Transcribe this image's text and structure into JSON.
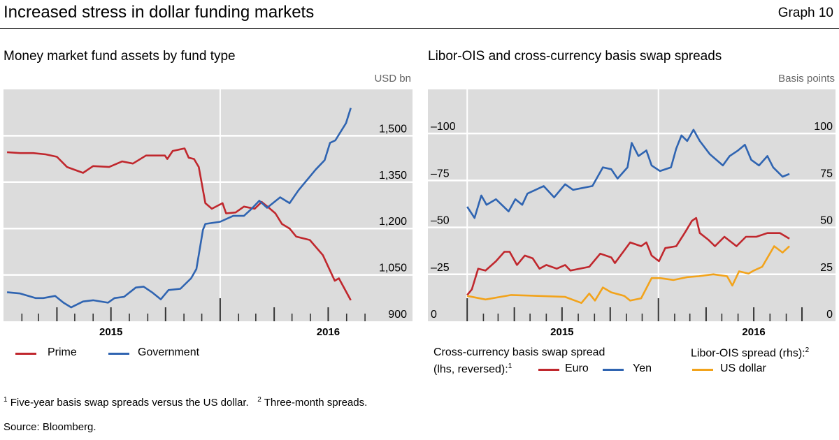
{
  "header": {
    "title": "Increased stress in dollar funding markets",
    "graph_label": "Graph 10"
  },
  "colors": {
    "prime": "#c0272d",
    "government": "#2f64b1",
    "euro": "#c0272d",
    "yen": "#2f64b1",
    "us_dollar": "#f2a31b",
    "plot_background": "#dcdcdc",
    "gridline": "#ffffff"
  },
  "chart_data": [
    {
      "type": "line",
      "title": "Money market fund assets by fund type",
      "y_unit": "USD bn",
      "y_axis_side": "right",
      "ylim": [
        900,
        1650
      ],
      "xlim": [
        "2015-01-01",
        "2016-11-20"
      ],
      "grid": true,
      "y_ticks": [
        {
          "value": 900,
          "label": "900"
        },
        {
          "value": 1050,
          "label": "1,050"
        },
        {
          "value": 1200,
          "label": "1,200"
        },
        {
          "value": 1350,
          "label": "1,350"
        },
        {
          "value": 1500,
          "label": "1,500"
        }
      ],
      "x_tick_labels": [
        {
          "date": "2015-07-01",
          "label": "2015"
        },
        {
          "date": "2016-07-01",
          "label": "2016"
        }
      ],
      "legend_position": "bottom",
      "series": [
        {
          "name": "Prime",
          "color": "#c0272d",
          "points": [
            [
              "2015-01-07",
              1447
            ],
            [
              "2015-01-29",
              1444
            ],
            [
              "2015-02-20",
              1444
            ],
            [
              "2015-03-13",
              1440
            ],
            [
              "2015-04-01",
              1432
            ],
            [
              "2015-04-18",
              1399
            ],
            [
              "2015-05-15",
              1380
            ],
            [
              "2015-06-01",
              1402
            ],
            [
              "2015-06-28",
              1399
            ],
            [
              "2015-07-20",
              1417
            ],
            [
              "2015-08-07",
              1410
            ],
            [
              "2015-08-29",
              1436
            ],
            [
              "2015-09-30",
              1436
            ],
            [
              "2015-10-04",
              1425
            ],
            [
              "2015-10-13",
              1451
            ],
            [
              "2015-11-02",
              1459
            ],
            [
              "2015-11-09",
              1429
            ],
            [
              "2015-11-18",
              1425
            ],
            [
              "2015-11-26",
              1399
            ],
            [
              "2015-12-07",
              1282
            ],
            [
              "2015-12-18",
              1264
            ],
            [
              "2016-01-05",
              1282
            ],
            [
              "2016-01-11",
              1249
            ],
            [
              "2016-01-27",
              1252
            ],
            [
              "2016-02-10",
              1271
            ],
            [
              "2016-02-28",
              1264
            ],
            [
              "2016-03-11",
              1286
            ],
            [
              "2016-03-25",
              1264
            ],
            [
              "2016-04-03",
              1249
            ],
            [
              "2016-04-14",
              1215
            ],
            [
              "2016-04-27",
              1200
            ],
            [
              "2016-05-08",
              1174
            ],
            [
              "2016-05-31",
              1163
            ],
            [
              "2016-06-22",
              1114
            ],
            [
              "2016-07-12",
              1031
            ],
            [
              "2016-07-19",
              1039
            ],
            [
              "2016-08-08",
              968
            ]
          ]
        },
        {
          "name": "Government",
          "color": "#2f64b1",
          "points": [
            [
              "2015-01-07",
              994
            ],
            [
              "2015-01-29",
              990
            ],
            [
              "2015-02-24",
              975
            ],
            [
              "2015-03-09",
              975
            ],
            [
              "2015-03-29",
              982
            ],
            [
              "2015-04-12",
              960
            ],
            [
              "2015-04-25",
              945
            ],
            [
              "2015-05-15",
              964
            ],
            [
              "2015-06-01",
              968
            ],
            [
              "2015-06-26",
              960
            ],
            [
              "2015-07-07",
              975
            ],
            [
              "2015-07-23",
              979
            ],
            [
              "2015-08-12",
              1009
            ],
            [
              "2015-08-25",
              1012
            ],
            [
              "2015-09-08",
              994
            ],
            [
              "2015-09-23",
              971
            ],
            [
              "2015-10-06",
              1001
            ],
            [
              "2015-10-26",
              1005
            ],
            [
              "2015-11-13",
              1039
            ],
            [
              "2015-11-22",
              1069
            ],
            [
              "2015-12-03",
              1196
            ],
            [
              "2015-12-07",
              1215
            ],
            [
              "2016-01-01",
              1222
            ],
            [
              "2016-01-23",
              1241
            ],
            [
              "2016-02-10",
              1241
            ],
            [
              "2016-02-23",
              1264
            ],
            [
              "2016-03-07",
              1290
            ],
            [
              "2016-03-20",
              1267
            ],
            [
              "2016-04-11",
              1301
            ],
            [
              "2016-04-27",
              1282
            ],
            [
              "2016-05-12",
              1324
            ],
            [
              "2016-06-10",
              1391
            ],
            [
              "2016-06-25",
              1421
            ],
            [
              "2016-07-04",
              1477
            ],
            [
              "2016-07-13",
              1485
            ],
            [
              "2016-07-31",
              1541
            ],
            [
              "2016-08-08",
              1590
            ]
          ]
        }
      ]
    },
    {
      "type": "line",
      "title": "Libor-OIS and cross-currency basis swap spreads",
      "y_unit": "Basis points",
      "xlim": [
        "2014-10-18",
        "2016-12-04"
      ],
      "ylim_left": [
        0,
        -123.5
      ],
      "ylim_left_reversed": true,
      "ylim_right": [
        0,
        123.5
      ],
      "grid": true,
      "y_ticks_left": [
        {
          "value": 0,
          "label": "0"
        },
        {
          "value": -25,
          "label": "–25"
        },
        {
          "value": -50,
          "label": "–50"
        },
        {
          "value": -75,
          "label": "–75"
        },
        {
          "value": -100,
          "label": "–100"
        }
      ],
      "y_ticks_right": [
        {
          "value": 0,
          "label": "0"
        },
        {
          "value": 25,
          "label": "25"
        },
        {
          "value": 50,
          "label": "50"
        },
        {
          "value": 75,
          "label": "75"
        },
        {
          "value": 100,
          "label": "100"
        }
      ],
      "x_tick_labels": [
        {
          "date": "2015-07-01",
          "label": "2015"
        },
        {
          "date": "2016-07-01",
          "label": "2016"
        }
      ],
      "legend_position": "bottom",
      "legend": {
        "group1_line1": "Cross-currency basis swap spread",
        "group1_line2": "(lhs, reversed):",
        "group1_footnote": "1",
        "group2_line1": "Libor-OIS spread (rhs):",
        "group2_footnote": "2"
      },
      "series": [
        {
          "name": "Euro",
          "axis": "left",
          "color": "#c0272d",
          "points": [
            [
              "2015-01-01",
              -14
            ],
            [
              "2015-01-10",
              -17
            ],
            [
              "2015-01-22",
              -28
            ],
            [
              "2015-02-05",
              -27
            ],
            [
              "2015-02-25",
              -32
            ],
            [
              "2015-03-13",
              -37
            ],
            [
              "2015-03-23",
              -37
            ],
            [
              "2015-04-06",
              -30
            ],
            [
              "2015-04-21",
              -35
            ],
            [
              "2015-05-06",
              -33.5
            ],
            [
              "2015-05-19",
              -28
            ],
            [
              "2015-06-01",
              -30
            ],
            [
              "2015-06-21",
              -28
            ],
            [
              "2015-07-07",
              -30
            ],
            [
              "2015-07-17",
              -27
            ],
            [
              "2015-08-22",
              -29
            ],
            [
              "2015-09-12",
              -36
            ],
            [
              "2015-10-03",
              -34
            ],
            [
              "2015-10-10",
              -31
            ],
            [
              "2015-11-08",
              -42
            ],
            [
              "2015-11-29",
              -40
            ],
            [
              "2015-12-09",
              -42
            ],
            [
              "2015-12-19",
              -35
            ],
            [
              "2016-01-02",
              -32
            ],
            [
              "2016-01-14",
              -39
            ],
            [
              "2016-02-04",
              -40
            ],
            [
              "2016-02-20",
              -47
            ],
            [
              "2016-03-05",
              -53.5
            ],
            [
              "2016-03-13",
              -55
            ],
            [
              "2016-03-20",
              -47
            ],
            [
              "2016-04-05",
              -43.5
            ],
            [
              "2016-04-18",
              -40
            ],
            [
              "2016-05-06",
              -45
            ],
            [
              "2016-05-29",
              -40
            ],
            [
              "2016-06-16",
              -45
            ],
            [
              "2016-07-06",
              -45
            ],
            [
              "2016-07-27",
              -47
            ],
            [
              "2016-08-20",
              -47
            ],
            [
              "2016-09-07",
              -44
            ]
          ]
        },
        {
          "name": "Yen",
          "axis": "left",
          "color": "#2f64b1",
          "points": [
            [
              "2015-01-01",
              -61
            ],
            [
              "2015-01-15",
              -55
            ],
            [
              "2015-01-28",
              -67
            ],
            [
              "2015-02-07",
              -62
            ],
            [
              "2015-02-25",
              -65
            ],
            [
              "2015-03-21",
              -58.5
            ],
            [
              "2015-04-03",
              -65
            ],
            [
              "2015-04-16",
              -62
            ],
            [
              "2015-04-26",
              -68
            ],
            [
              "2015-05-27",
              -72
            ],
            [
              "2015-06-16",
              -66
            ],
            [
              "2015-07-07",
              -73
            ],
            [
              "2015-07-22",
              -70
            ],
            [
              "2015-08-28",
              -72
            ],
            [
              "2015-09-17",
              -82
            ],
            [
              "2015-10-03",
              -81
            ],
            [
              "2015-10-15",
              -76
            ],
            [
              "2015-11-03",
              -82
            ],
            [
              "2015-11-11",
              -95
            ],
            [
              "2015-11-24",
              -88
            ],
            [
              "2015-12-09",
              -91
            ],
            [
              "2015-12-19",
              -83
            ],
            [
              "2016-01-04",
              -80
            ],
            [
              "2016-01-25",
              -82
            ],
            [
              "2016-02-04",
              -92
            ],
            [
              "2016-02-14",
              -99
            ],
            [
              "2016-02-25",
              -96
            ],
            [
              "2016-03-08",
              -102
            ],
            [
              "2016-03-20",
              -96
            ],
            [
              "2016-04-08",
              -89
            ],
            [
              "2016-05-03",
              -83
            ],
            [
              "2016-05-16",
              -88
            ],
            [
              "2016-06-01",
              -91
            ],
            [
              "2016-06-14",
              -94
            ],
            [
              "2016-06-26",
              -86
            ],
            [
              "2016-07-11",
              -83
            ],
            [
              "2016-07-27",
              -88
            ],
            [
              "2016-08-07",
              -82
            ],
            [
              "2016-08-25",
              -77
            ],
            [
              "2016-09-07",
              -78.5
            ]
          ]
        },
        {
          "name": "US dollar",
          "axis": "right",
          "color": "#f2a31b",
          "points": [
            [
              "2015-01-01",
              13.5
            ],
            [
              "2015-02-05",
              11.6
            ],
            [
              "2015-03-26",
              14
            ],
            [
              "2015-05-16",
              13.5
            ],
            [
              "2015-07-07",
              13
            ],
            [
              "2015-08-07",
              9.75
            ],
            [
              "2015-08-22",
              14.75
            ],
            [
              "2015-09-02",
              11
            ],
            [
              "2015-09-17",
              18
            ],
            [
              "2015-10-03",
              15.4
            ],
            [
              "2015-10-28",
              13.5
            ],
            [
              "2015-11-08",
              11
            ],
            [
              "2015-11-29",
              12.25
            ],
            [
              "2015-12-19",
              23
            ],
            [
              "2016-01-04",
              23
            ],
            [
              "2016-01-30",
              22
            ],
            [
              "2016-02-25",
              23.5
            ],
            [
              "2016-03-18",
              24
            ],
            [
              "2016-04-15",
              25
            ],
            [
              "2016-05-11",
              24
            ],
            [
              "2016-05-21",
              19
            ],
            [
              "2016-06-03",
              26.6
            ],
            [
              "2016-06-21",
              25.4
            ],
            [
              "2016-07-01",
              27
            ],
            [
              "2016-07-17",
              29
            ],
            [
              "2016-08-09",
              40
            ],
            [
              "2016-08-25",
              36.6
            ],
            [
              "2016-09-07",
              40
            ]
          ]
        }
      ]
    }
  ],
  "footnotes": {
    "n1_mark": "1",
    "n1_text": "Five-year basis swap spreads versus the US dollar.",
    "n2_mark": "2",
    "n2_text": "Three-month spreads."
  },
  "source": "Source: Bloomberg."
}
